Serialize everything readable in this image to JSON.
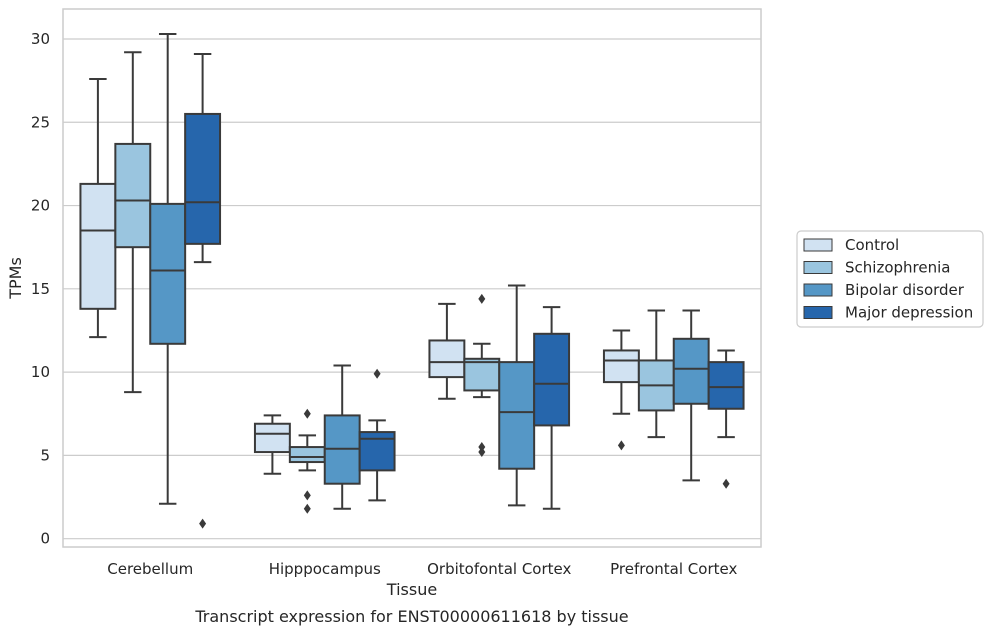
{
  "chart_data": {
    "type": "box",
    "title": "",
    "xlabel": "Tissue",
    "ylabel": "TPMs",
    "caption": "Transcript expression for ENST00000611618 by tissue",
    "ylim": [
      -0.5,
      31.8
    ],
    "yticks": [
      0,
      5,
      10,
      15,
      20,
      25,
      30
    ],
    "grid": "horizontal",
    "legend_position": "right",
    "categories": [
      "Cerebellum",
      "Hipppocampus",
      "Orbitofontal Cortex",
      "Prefrontal Cortex"
    ],
    "series": [
      {
        "name": "Control",
        "color": "#d1e2f2",
        "boxes": [
          {
            "whislo": 12.1,
            "q1": 13.8,
            "med": 18.5,
            "q3": 21.3,
            "whishi": 27.6,
            "fliers": []
          },
          {
            "whislo": 3.9,
            "q1": 5.2,
            "med": 6.3,
            "q3": 6.9,
            "whishi": 7.4,
            "fliers": []
          },
          {
            "whislo": 8.4,
            "q1": 9.7,
            "med": 10.6,
            "q3": 11.9,
            "whishi": 14.1,
            "fliers": []
          },
          {
            "whislo": 7.5,
            "q1": 9.4,
            "med": 10.7,
            "q3": 11.3,
            "whishi": 12.5,
            "fliers": [
              5.6
            ]
          }
        ]
      },
      {
        "name": "Schizophrenia",
        "color": "#9ac5df",
        "boxes": [
          {
            "whislo": 8.8,
            "q1": 17.5,
            "med": 20.3,
            "q3": 23.7,
            "whishi": 29.2,
            "fliers": []
          },
          {
            "whislo": 4.1,
            "q1": 4.6,
            "med": 4.9,
            "q3": 5.5,
            "whishi": 6.2,
            "fliers": [
              7.5,
              2.6,
              1.8
            ]
          },
          {
            "whislo": 8.5,
            "q1": 8.9,
            "med": 10.6,
            "q3": 10.8,
            "whishi": 11.7,
            "fliers": [
              14.4,
              5.5,
              5.2
            ]
          },
          {
            "whislo": 6.1,
            "q1": 7.7,
            "med": 9.2,
            "q3": 10.7,
            "whishi": 13.7,
            "fliers": []
          }
        ]
      },
      {
        "name": "Bipolar disorder",
        "color": "#5597c6",
        "boxes": [
          {
            "whislo": 2.1,
            "q1": 11.7,
            "med": 16.1,
            "q3": 20.1,
            "whishi": 30.3,
            "fliers": []
          },
          {
            "whislo": 1.8,
            "q1": 3.3,
            "med": 5.4,
            "q3": 7.4,
            "whishi": 10.4,
            "fliers": []
          },
          {
            "whislo": 2.0,
            "q1": 4.2,
            "med": 7.6,
            "q3": 10.6,
            "whishi": 15.2,
            "fliers": []
          },
          {
            "whislo": 3.5,
            "q1": 8.1,
            "med": 10.2,
            "q3": 12.0,
            "whishi": 13.7,
            "fliers": []
          }
        ]
      },
      {
        "name": "Major depression",
        "color": "#2666ac",
        "boxes": [
          {
            "whislo": 16.6,
            "q1": 17.7,
            "med": 20.2,
            "q3": 25.5,
            "whishi": 29.1,
            "fliers": [
              0.9
            ]
          },
          {
            "whislo": 2.3,
            "q1": 4.1,
            "med": 6.0,
            "q3": 6.4,
            "whishi": 7.1,
            "fliers": [
              9.9
            ]
          },
          {
            "whislo": 1.8,
            "q1": 6.8,
            "med": 9.3,
            "q3": 12.3,
            "whishi": 13.9,
            "fliers": []
          },
          {
            "whislo": 6.1,
            "q1": 7.8,
            "med": 9.1,
            "q3": 10.6,
            "whishi": 11.3,
            "fliers": [
              3.3
            ]
          }
        ]
      }
    ]
  }
}
